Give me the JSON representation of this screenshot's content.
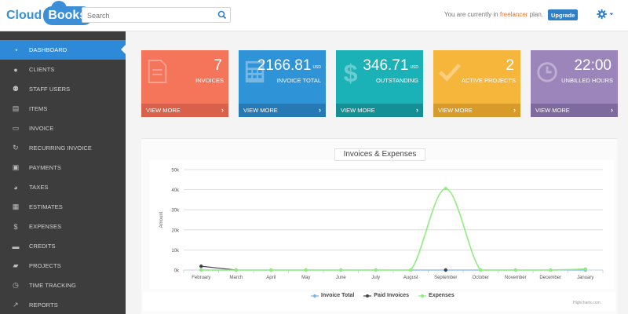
{
  "app": {
    "logo_part1": "Cloud",
    "logo_part2": "Books"
  },
  "header": {
    "search_placeholder": "Search",
    "plan_prefix": "You are currently in",
    "plan_name": "freelancer",
    "plan_suffix": "plan.",
    "upgrade_label": "Upgrade",
    "settings_icon": "gear-icon"
  },
  "sidebar": {
    "items": [
      {
        "label": "DASHBOARD",
        "icon": "dashboard-icon",
        "active": true
      },
      {
        "label": "CLIENTS",
        "icon": "user-icon"
      },
      {
        "label": "STAFF USERS",
        "icon": "users-icon"
      },
      {
        "label": "ITEMS",
        "icon": "inbox-icon"
      },
      {
        "label": "INVOICE",
        "icon": "invoice-icon"
      },
      {
        "label": "RECURRING INVOICE",
        "icon": "refresh-icon"
      },
      {
        "label": "PAYMENTS",
        "icon": "payment-icon"
      },
      {
        "label": "TAXES",
        "icon": "pie-icon"
      },
      {
        "label": "ESTIMATES",
        "icon": "calculator-icon"
      },
      {
        "label": "EXPENSES",
        "icon": "dollar-icon"
      },
      {
        "label": "CREDITS",
        "icon": "credit-card-icon"
      },
      {
        "label": "PROJECTS",
        "icon": "folder-icon"
      },
      {
        "label": "TIME TRACKING",
        "icon": "clock-icon"
      },
      {
        "label": "REPORTS",
        "icon": "chart-icon"
      }
    ]
  },
  "cards": [
    {
      "value": "7",
      "unit": "",
      "label": "INVOICES",
      "footer": "VIEW MORE",
      "color": "#f4755a",
      "footer_color": "#d9604a",
      "icon": "document-icon"
    },
    {
      "value": "2166.81",
      "unit": "USD",
      "label": "INVOICE TOTAL",
      "footer": "VIEW MORE",
      "color": "#2f93d8",
      "footer_color": "#2679b5",
      "icon": "calculator-icon"
    },
    {
      "value": "346.71",
      "unit": "USD",
      "label": "OUTSTANDING",
      "footer": "VIEW MORE",
      "color": "#1ab1b7",
      "footer_color": "#148f95",
      "icon": "dollar-icon"
    },
    {
      "value": "2",
      "unit": "",
      "label": "ACTIVE PROJECTS",
      "footer": "VIEW MORE",
      "color": "#f6b63b",
      "footer_color": "#d89b2a",
      "icon": "check-icon"
    },
    {
      "value": "22:00",
      "unit": "",
      "label": "UNBILLED HOURS",
      "footer": "VIEW MORE",
      "color": "#9c85bb",
      "footer_color": "#7f6aa0",
      "icon": "clock-icon"
    }
  ],
  "chart_panel": {
    "title": "Invoices & Expenses",
    "credit": "Highcharts.com"
  },
  "chart_data": {
    "type": "line",
    "title": "Invoices & Expenses",
    "ylabel": "Amount",
    "xlabel": "",
    "ylim": [
      0,
      50000
    ],
    "yticks": [
      "0k",
      "10k",
      "20k",
      "30k",
      "40k",
      "50k"
    ],
    "categories": [
      "February",
      "March",
      "April",
      "May",
      "June",
      "July",
      "August",
      "September",
      "October",
      "November",
      "December",
      "January"
    ],
    "series": [
      {
        "name": "Invoice Total",
        "color": "#7cb5ec",
        "values": [
          0,
          0,
          0,
          0,
          0,
          0,
          0,
          0,
          0,
          0,
          0,
          0
        ]
      },
      {
        "name": "Paid Invoices",
        "color": "#434348",
        "values": [
          1900,
          0,
          null,
          null,
          null,
          null,
          null,
          0,
          null,
          null,
          null,
          null
        ]
      },
      {
        "name": "Expenses",
        "color": "#90ed7d",
        "values": [
          0,
          0,
          0,
          0,
          0,
          0,
          0,
          40500,
          0,
          0,
          0,
          500
        ]
      }
    ],
    "grid": true,
    "legend": "bottom"
  }
}
